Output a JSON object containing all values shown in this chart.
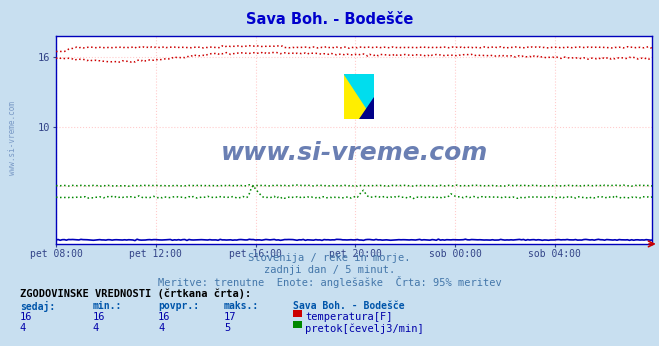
{
  "title": "Sava Boh. - Bodešče",
  "title_color": "#0000cc",
  "bg_color": "#c8dff0",
  "plot_bg_color": "#ffffff",
  "xlim": [
    0,
    287
  ],
  "ylim": [
    0,
    17.8
  ],
  "ytick_vals": [
    10,
    16
  ],
  "xtick_positions": [
    0,
    48,
    96,
    144,
    192,
    240
  ],
  "xtick_labels": [
    "pet 08:00",
    "pet 12:00",
    "pet 16:00",
    "pet 20:00",
    "sob 00:00",
    "sob 04:00"
  ],
  "grid_color_v": "#ffcccc",
  "grid_color_h": "#ffcccc",
  "temp_color": "#cc0000",
  "flow_color": "#008800",
  "height_color": "#0000bb",
  "watermark": "www.si-vreme.com",
  "watermark_color": "#1a3a8a",
  "subtitle1": "Slovenija / reke in morje.",
  "subtitle2": "zadnji dan / 5 minut.",
  "subtitle3": "Meritve: trenutne  Enote: anglešaške  Črta: 95% meritev",
  "subtitle_color": "#4477aa",
  "legend_title": "ZGODOVINSKE VREDNOSTI (črtkana črta):",
  "legend_headers": [
    "sedaj:",
    "min.:",
    "povpr.:",
    "maks.:",
    "Sava Boh. - Bodešče"
  ],
  "legend_row1_vals": [
    "16",
    "16",
    "16",
    "17"
  ],
  "legend_row1_label": "temperatura[F]",
  "legend_row1_color": "#cc0000",
  "legend_row2_vals": [
    "4",
    "4",
    "4",
    "5"
  ],
  "legend_row2_label": "pretok[čevelj3/min]",
  "legend_row2_color": "#008800",
  "legend_color": "#0000aa",
  "legend_header_color": "#0055aa",
  "side_watermark": "www.si-vreme.com"
}
